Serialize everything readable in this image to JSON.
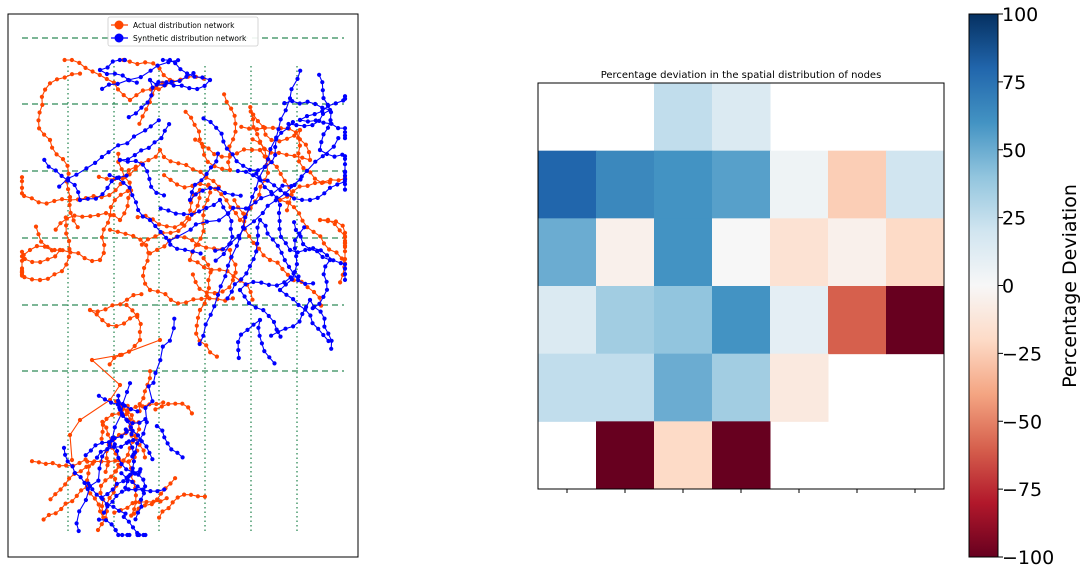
{
  "chart_data": [
    {
      "type": "scatter",
      "legend": {
        "placement": "top-center",
        "entries": [
          {
            "label": "Actual distribution network",
            "color": "#ff4500"
          },
          {
            "label": "Synthetic distribution network",
            "color": "#0000ff"
          }
        ]
      },
      "grid": {
        "horizontal_lines": 6,
        "vertical_lines": 6,
        "horizontal_style": "dashed",
        "vertical_style": "dotted",
        "color": "#2e8b57"
      },
      "axes_ticks": "off"
    },
    {
      "type": "heatmap",
      "title": "Percentage deviation in the spatial distribution of nodes",
      "rows": 6,
      "cols": 7,
      "values": [
        [
          null,
          null,
          25,
          15,
          null,
          null,
          null
        ],
        [
          80,
          65,
          60,
          55,
          5,
          -25,
          20
        ],
        [
          50,
          -5,
          60,
          0,
          -15,
          -5,
          -20
        ],
        [
          15,
          35,
          40,
          60,
          10,
          -60,
          -100
        ],
        [
          25,
          25,
          50,
          35,
          -10,
          null,
          null
        ],
        [
          null,
          -100,
          -20,
          -100,
          null,
          null,
          null
        ]
      ],
      "colorbar": {
        "label": "Percentage Deviation",
        "vmin": -100,
        "vmax": 100,
        "ticks": [
          "100",
          "75",
          "50",
          "25",
          "0",
          "−25",
          "−50",
          "−75",
          "−100"
        ],
        "colormap": "RdBu"
      }
    }
  ]
}
